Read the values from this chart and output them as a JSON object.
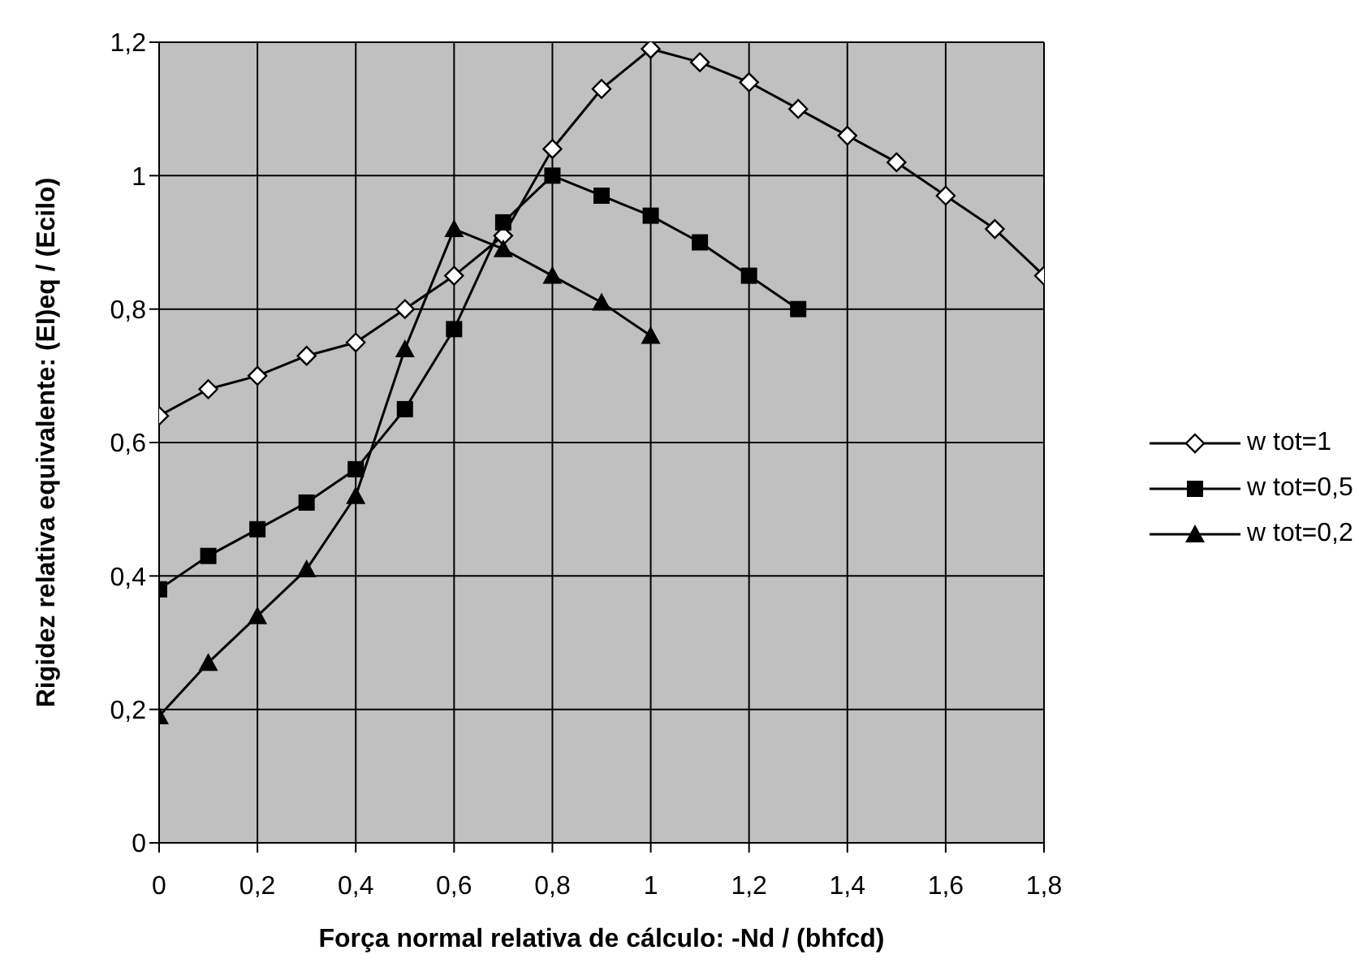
{
  "chart_data": {
    "type": "line",
    "xlabel": "Força normal relativa de cálculo: -Nd / (bhfcd)",
    "ylabel": "Rigidez relativa equivalente: (EI)eq / (Ecilo)",
    "x": [
      0,
      0.1,
      0.2,
      0.3,
      0.4,
      0.5,
      0.6,
      0.7,
      0.8,
      0.9,
      1,
      1.1,
      1.2,
      1.3,
      1.4,
      1.5,
      1.6,
      1.7,
      1.8
    ],
    "series": [
      {
        "name": "w tot=1",
        "color": "#000000",
        "marker": "diamond",
        "values": [
          0.64,
          0.68,
          0.7,
          0.73,
          0.75,
          0.8,
          0.85,
          0.91,
          1.04,
          1.13,
          1.19,
          1.17,
          1.14,
          1.1,
          1.06,
          1.02,
          0.97,
          0.92,
          0.85
        ]
      },
      {
        "name": "w tot=0,5",
        "color": "#000000",
        "marker": "square",
        "values": [
          0.38,
          0.43,
          0.47,
          0.51,
          0.56,
          0.65,
          0.77,
          0.93,
          1.0,
          0.97,
          0.94,
          0.9,
          0.85,
          0.8,
          null,
          null,
          null,
          null,
          null
        ]
      },
      {
        "name": "w tot=0,2",
        "color": "#000000",
        "marker": "triangle",
        "values": [
          0.19,
          0.27,
          0.34,
          0.41,
          0.52,
          0.74,
          0.92,
          0.89,
          0.85,
          0.81,
          0.76,
          null,
          null,
          null,
          null,
          null,
          null,
          null,
          null
        ]
      }
    ],
    "xlim": [
      0,
      1.8
    ],
    "xticks": [
      0,
      {
        "value": 0.2,
        "label": "0,2"
      },
      {
        "value": 0.4,
        "label": "0,4"
      },
      {
        "value": 0.6,
        "label": "0,6"
      },
      {
        "value": 0.8,
        "label": "0,8"
      },
      1,
      {
        "value": 1.2,
        "label": "1,2"
      },
      {
        "value": 1.4,
        "label": "1,4"
      },
      {
        "value": 1.6,
        "label": "1,6"
      },
      {
        "value": 1.8,
        "label": "1,8"
      }
    ],
    "ylim": [
      0,
      1.2
    ],
    "yticks": [
      0,
      {
        "value": 0.2,
        "label": "0,2"
      },
      {
        "value": 0.4,
        "label": "0,4"
      },
      {
        "value": 0.6,
        "label": "0,6"
      },
      {
        "value": 0.8,
        "label": "0,8"
      },
      1,
      {
        "value": 1.2,
        "label": "1,2"
      }
    ],
    "grid": true,
    "legend": "right",
    "line_style": "solid"
  }
}
